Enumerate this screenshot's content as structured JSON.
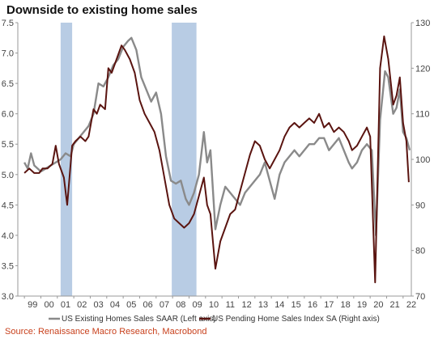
{
  "title": "Downside to existing home sales",
  "source": "Source: Renaissance Macro Research, Macrobond",
  "chart_data": {
    "type": "line",
    "y_left_lim": [
      3.0,
      7.5
    ],
    "y_right_lim": [
      70,
      130
    ],
    "x_lim": [
      1998.6,
      2022.5
    ],
    "y_left_ticks": [
      "3.0",
      "3.5",
      "4.0",
      "4.5",
      "5.0",
      "5.5",
      "6.0",
      "6.5",
      "7.0",
      "7.5"
    ],
    "y_right_ticks": [
      "70",
      "80",
      "90",
      "100",
      "110",
      "120",
      "130"
    ],
    "x_ticks": [
      "99",
      "00",
      "01",
      "02",
      "03",
      "04",
      "05",
      "06",
      "07",
      "08",
      "09",
      "10",
      "11",
      "12",
      "13",
      "14",
      "15",
      "16",
      "17",
      "18",
      "19",
      "20",
      "21",
      "22"
    ],
    "recessions": [
      [
        2001.2,
        2001.9
      ],
      [
        2007.95,
        2009.45
      ]
    ],
    "legend_position": "bottom",
    "grid": false,
    "series": [
      {
        "name": "US Existing Homes Sales SAAR (Left axis)",
        "axis": "left",
        "color": "#8a8a8a",
        "points": [
          [
            1999.0,
            5.2
          ],
          [
            1999.2,
            5.1
          ],
          [
            1999.4,
            5.35
          ],
          [
            1999.6,
            5.15
          ],
          [
            1999.8,
            5.1
          ],
          [
            2000.0,
            5.05
          ],
          [
            2000.3,
            5.1
          ],
          [
            2000.6,
            5.15
          ],
          [
            2000.9,
            5.2
          ],
          [
            2001.2,
            5.25
          ],
          [
            2001.5,
            5.35
          ],
          [
            2001.8,
            5.3
          ],
          [
            2002.0,
            5.5
          ],
          [
            2002.3,
            5.6
          ],
          [
            2002.6,
            5.7
          ],
          [
            2002.9,
            5.8
          ],
          [
            2003.2,
            6.0
          ],
          [
            2003.5,
            6.5
          ],
          [
            2003.8,
            6.45
          ],
          [
            2004.1,
            6.6
          ],
          [
            2004.4,
            6.8
          ],
          [
            2004.7,
            6.9
          ],
          [
            2005.0,
            7.1
          ],
          [
            2005.3,
            7.2
          ],
          [
            2005.5,
            7.25
          ],
          [
            2005.8,
            7.05
          ],
          [
            2006.1,
            6.6
          ],
          [
            2006.4,
            6.4
          ],
          [
            2006.7,
            6.2
          ],
          [
            2007.0,
            6.35
          ],
          [
            2007.3,
            6.0
          ],
          [
            2007.6,
            5.3
          ],
          [
            2007.9,
            4.9
          ],
          [
            2008.2,
            4.85
          ],
          [
            2008.5,
            4.9
          ],
          [
            2008.8,
            4.6
          ],
          [
            2009.0,
            4.5
          ],
          [
            2009.3,
            4.7
          ],
          [
            2009.6,
            5.0
          ],
          [
            2009.9,
            5.7
          ],
          [
            2010.1,
            5.2
          ],
          [
            2010.3,
            5.4
          ],
          [
            2010.6,
            4.1
          ],
          [
            2010.9,
            4.5
          ],
          [
            2011.2,
            4.8
          ],
          [
            2011.5,
            4.7
          ],
          [
            2011.8,
            4.6
          ],
          [
            2012.1,
            4.5
          ],
          [
            2012.4,
            4.7
          ],
          [
            2012.7,
            4.8
          ],
          [
            2013.0,
            4.9
          ],
          [
            2013.3,
            5.0
          ],
          [
            2013.6,
            5.2
          ],
          [
            2013.9,
            4.9
          ],
          [
            2014.2,
            4.6
          ],
          [
            2014.5,
            5.0
          ],
          [
            2014.8,
            5.2
          ],
          [
            2015.1,
            5.3
          ],
          [
            2015.4,
            5.4
          ],
          [
            2015.7,
            5.3
          ],
          [
            2016.0,
            5.4
          ],
          [
            2016.3,
            5.5
          ],
          [
            2016.6,
            5.5
          ],
          [
            2016.9,
            5.6
          ],
          [
            2017.2,
            5.6
          ],
          [
            2017.5,
            5.4
          ],
          [
            2017.8,
            5.5
          ],
          [
            2018.1,
            5.6
          ],
          [
            2018.4,
            5.4
          ],
          [
            2018.7,
            5.2
          ],
          [
            2018.9,
            5.1
          ],
          [
            2019.2,
            5.2
          ],
          [
            2019.5,
            5.4
          ],
          [
            2019.8,
            5.5
          ],
          [
            2020.1,
            5.4
          ],
          [
            2020.35,
            4.0
          ],
          [
            2020.6,
            5.9
          ],
          [
            2020.9,
            6.7
          ],
          [
            2021.1,
            6.6
          ],
          [
            2021.4,
            6.0
          ],
          [
            2021.6,
            6.1
          ],
          [
            2021.8,
            6.4
          ],
          [
            2022.0,
            5.7
          ],
          [
            2022.2,
            5.6
          ],
          [
            2022.4,
            5.4
          ]
        ]
      },
      {
        "name": "US Pending Home Sales Index SA (Right axis)",
        "axis": "right",
        "color": "#5a1410",
        "points": [
          [
            1999.0,
            97
          ],
          [
            1999.3,
            98
          ],
          [
            1999.6,
            97
          ],
          [
            1999.9,
            97
          ],
          [
            2000.1,
            98
          ],
          [
            2000.4,
            98
          ],
          [
            2000.7,
            99
          ],
          [
            2000.9,
            103
          ],
          [
            2001.1,
            99
          ],
          [
            2001.4,
            96
          ],
          [
            2001.6,
            90
          ],
          [
            2001.9,
            103
          ],
          [
            2002.1,
            104
          ],
          [
            2002.4,
            105
          ],
          [
            2002.7,
            104
          ],
          [
            2002.9,
            105
          ],
          [
            2003.2,
            111
          ],
          [
            2003.4,
            110
          ],
          [
            2003.6,
            112
          ],
          [
            2003.9,
            111
          ],
          [
            2004.1,
            120
          ],
          [
            2004.3,
            119
          ],
          [
            2004.6,
            122
          ],
          [
            2004.9,
            125
          ],
          [
            2005.1,
            124
          ],
          [
            2005.4,
            122
          ],
          [
            2005.7,
            119
          ],
          [
            2006.0,
            113
          ],
          [
            2006.3,
            110
          ],
          [
            2006.6,
            108
          ],
          [
            2006.9,
            106
          ],
          [
            2007.2,
            102
          ],
          [
            2007.5,
            96
          ],
          [
            2007.8,
            90
          ],
          [
            2008.1,
            87
          ],
          [
            2008.4,
            86
          ],
          [
            2008.7,
            85
          ],
          [
            2009.0,
            86
          ],
          [
            2009.3,
            88
          ],
          [
            2009.6,
            92
          ],
          [
            2009.9,
            96
          ],
          [
            2010.1,
            90
          ],
          [
            2010.3,
            88
          ],
          [
            2010.6,
            76
          ],
          [
            2010.9,
            82
          ],
          [
            2011.2,
            85
          ],
          [
            2011.5,
            88
          ],
          [
            2011.8,
            89
          ],
          [
            2012.1,
            93
          ],
          [
            2012.4,
            97
          ],
          [
            2012.7,
            101
          ],
          [
            2013.0,
            104
          ],
          [
            2013.3,
            103
          ],
          [
            2013.6,
            100
          ],
          [
            2013.9,
            98
          ],
          [
            2014.2,
            100
          ],
          [
            2014.5,
            102
          ],
          [
            2014.8,
            105
          ],
          [
            2015.1,
            107
          ],
          [
            2015.4,
            108
          ],
          [
            2015.7,
            107
          ],
          [
            2016.0,
            108
          ],
          [
            2016.3,
            109
          ],
          [
            2016.6,
            108
          ],
          [
            2016.9,
            110
          ],
          [
            2017.2,
            107
          ],
          [
            2017.5,
            108
          ],
          [
            2017.8,
            106
          ],
          [
            2018.1,
            107
          ],
          [
            2018.4,
            106
          ],
          [
            2018.7,
            104
          ],
          [
            2018.9,
            102
          ],
          [
            2019.2,
            103
          ],
          [
            2019.5,
            105
          ],
          [
            2019.8,
            107
          ],
          [
            2020.0,
            105
          ],
          [
            2020.3,
            73
          ],
          [
            2020.6,
            120
          ],
          [
            2020.85,
            127
          ],
          [
            2021.1,
            122
          ],
          [
            2021.4,
            112
          ],
          [
            2021.6,
            114
          ],
          [
            2021.8,
            118
          ],
          [
            2022.0,
            108
          ],
          [
            2022.2,
            104
          ],
          [
            2022.35,
            95
          ]
        ]
      }
    ]
  }
}
